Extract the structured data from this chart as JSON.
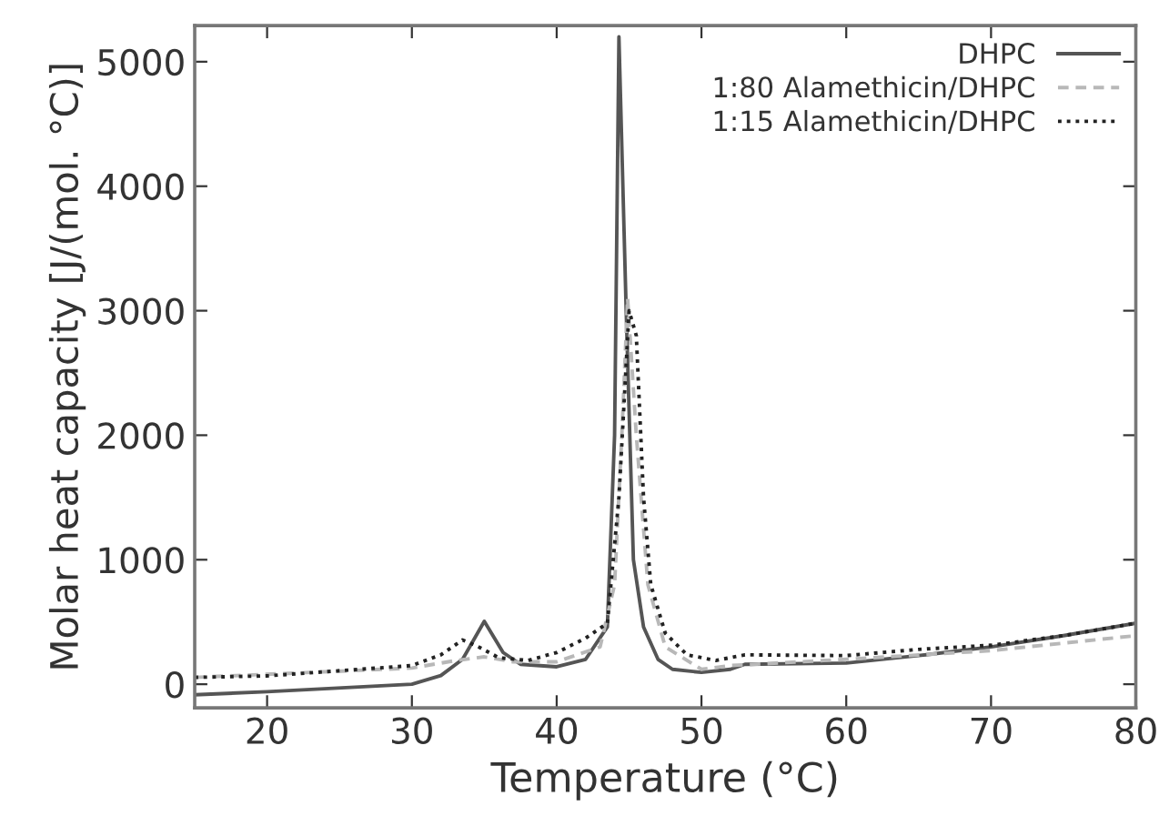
{
  "chart_data": {
    "type": "line",
    "xlabel": "Temperature (°C)",
    "ylabel": "Molar heat capacity [J/(mol. °C)]",
    "xlim": [
      15,
      80
    ],
    "ylim": [
      -190,
      5290
    ],
    "xticks": [
      20,
      30,
      40,
      50,
      60,
      70,
      80
    ],
    "yticks": [
      0,
      1000,
      2000,
      3000,
      4000,
      5000
    ],
    "grid": false,
    "legend": "top right",
    "marker": "none",
    "series": [
      {
        "name": "DHPC",
        "color": "#555555",
        "line_style": "solid",
        "x": [
          15,
          20,
          30,
          32,
          33.5,
          35,
          36.3,
          37.5,
          40,
          42,
          43.5,
          44,
          44.3,
          44.8,
          45.3,
          46,
          47,
          48,
          50,
          52,
          53,
          60,
          65,
          70,
          75,
          80
        ],
        "values": [
          -85,
          -60,
          0,
          70,
          200,
          505,
          255,
          160,
          140,
          200,
          460,
          2000,
          5200,
          3000,
          1000,
          460,
          200,
          120,
          95,
          120,
          160,
          170,
          230,
          300,
          390,
          490
        ]
      },
      {
        "name": "1:80 Alamethicin/DHPC",
        "color": "#b8b8b8",
        "line_style": "dashed",
        "x": [
          15,
          30,
          33,
          35,
          37,
          40,
          43,
          44,
          44.5,
          44.9,
          45.5,
          46.3,
          47.5,
          50,
          52,
          60,
          70,
          80
        ],
        "values": [
          55,
          130,
          190,
          220,
          180,
          180,
          300,
          800,
          2000,
          3100,
          2000,
          800,
          300,
          120,
          150,
          200,
          270,
          390
        ]
      },
      {
        "name": "1:15 Alamethicin/DHPC",
        "color": "#222222",
        "line_style": "dotted",
        "x": [
          15,
          20,
          30,
          32,
          33.5,
          34.5,
          36,
          38,
          40,
          42,
          43.5,
          44.3,
          45,
          45.5,
          46,
          46.5,
          47.5,
          49,
          51,
          53,
          60,
          65,
          70,
          75,
          80
        ],
        "values": [
          55,
          67,
          150,
          236,
          356,
          307,
          213,
          191,
          254,
          370,
          489,
          1500,
          3000,
          2800,
          1500,
          800,
          410,
          236,
          191,
          236,
          230,
          280,
          313,
          390,
          490
        ]
      }
    ]
  }
}
